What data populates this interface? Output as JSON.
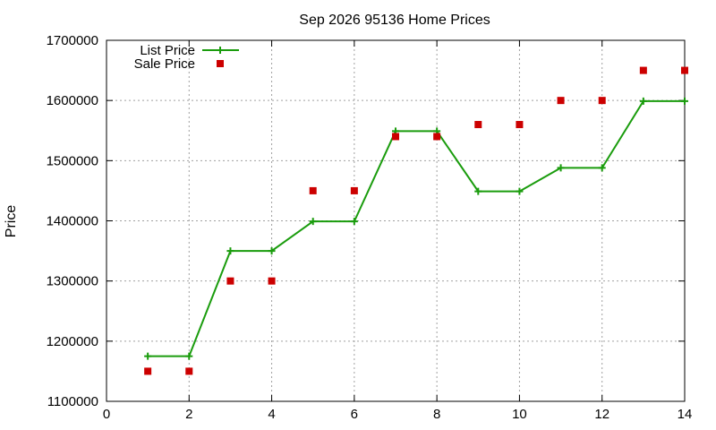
{
  "chart_data": {
    "type": "line",
    "title": "Sep 2026 95136 Home Prices",
    "xlabel": "",
    "ylabel": "Price",
    "xlim": [
      0,
      14
    ],
    "ylim": [
      1100000,
      1700000
    ],
    "xticks": [
      0,
      2,
      4,
      6,
      8,
      10,
      12,
      14
    ],
    "yticks": [
      1100000,
      1200000,
      1300000,
      1400000,
      1500000,
      1600000,
      1700000
    ],
    "grid": true,
    "legend_position": "top-left",
    "series": [
      {
        "name": "List Price",
        "style": "line-plus",
        "color": "#1a9c0d",
        "x": [
          1,
          2,
          3,
          4,
          5,
          6,
          7,
          8,
          9,
          10,
          11,
          12,
          13,
          14
        ],
        "y": [
          1175000,
          1175000,
          1350000,
          1350000,
          1399000,
          1399000,
          1549000,
          1549000,
          1449000,
          1449000,
          1488000,
          1488000,
          1599000,
          1599000
        ]
      },
      {
        "name": "Sale Price",
        "style": "square-points",
        "color": "#cc0000",
        "x": [
          1,
          2,
          3,
          4,
          5,
          6,
          7,
          8,
          9,
          10,
          11,
          12,
          13,
          14
        ],
        "y": [
          1150000,
          1150000,
          1300000,
          1300000,
          1450000,
          1450000,
          1540000,
          1540000,
          1560000,
          1560000,
          1600000,
          1600000,
          1650000,
          1650000
        ]
      }
    ]
  }
}
